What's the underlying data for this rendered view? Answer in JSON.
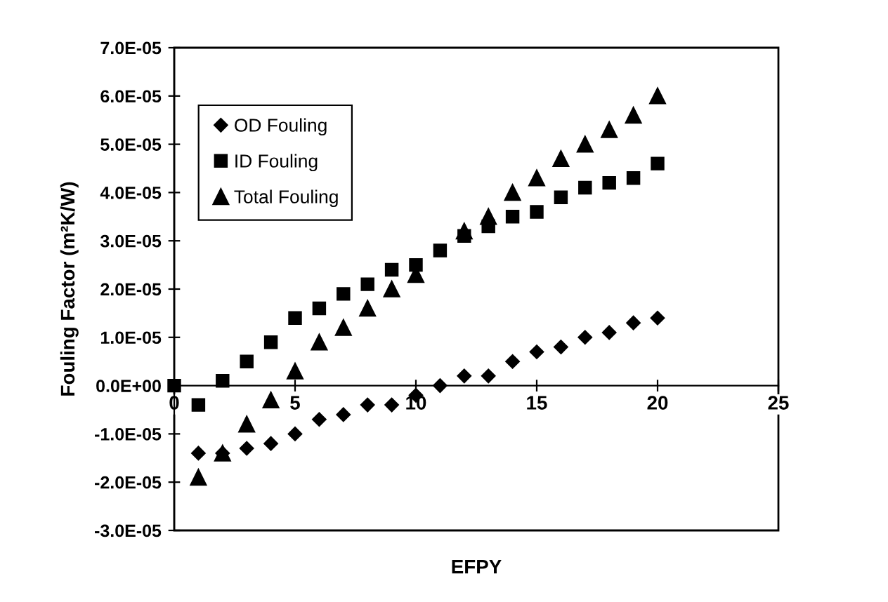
{
  "chart_data": {
    "type": "scatter",
    "xlabel": "EFPY",
    "ylabel": "Fouling Factor (m²K/W)",
    "xlim": [
      0,
      25
    ],
    "xticks": [
      0,
      5,
      10,
      15,
      20,
      25
    ],
    "ylim": [
      -3e-05,
      7e-05
    ],
    "yticks": [
      {
        "value": 7e-05,
        "label": "7.0E-05"
      },
      {
        "value": 6e-05,
        "label": "6.0E-05"
      },
      {
        "value": 5e-05,
        "label": "5.0E-05"
      },
      {
        "value": 4e-05,
        "label": "4.0E-05"
      },
      {
        "value": 3e-05,
        "label": "3.0E-05"
      },
      {
        "value": 2e-05,
        "label": "2.0E-05"
      },
      {
        "value": 1e-05,
        "label": "1.0E-05"
      },
      {
        "value": 0,
        "label": "0.0E+00"
      },
      {
        "value": -1e-05,
        "label": "-1.0E-05"
      },
      {
        "value": -2e-05,
        "label": "-2.0E-05"
      },
      {
        "value": -3e-05,
        "label": "-3.0E-05"
      }
    ],
    "grid": false,
    "legend": "top left",
    "series": [
      {
        "name": "OD Fouling",
        "color": "#000000",
        "marker": "diamond",
        "x": [
          1,
          2,
          3,
          4,
          5,
          6,
          7,
          8,
          9,
          10,
          11,
          12,
          13,
          14,
          15,
          16,
          17,
          18,
          19,
          20
        ],
        "values": [
          -1.4e-05,
          -1.4e-05,
          -1.3e-05,
          -1.2e-05,
          -1e-05,
          -7e-06,
          -6e-06,
          -4e-06,
          -4e-06,
          -2e-06,
          0,
          2e-06,
          2e-06,
          5e-06,
          7e-06,
          8e-06,
          1e-05,
          1.1e-05,
          1.3e-05,
          1.4e-05
        ]
      },
      {
        "name": "ID Fouling",
        "color": "#000000",
        "marker": "square",
        "x": [
          0,
          1,
          2,
          3,
          4,
          5,
          6,
          7,
          8,
          9,
          10,
          11,
          12,
          13,
          14,
          15,
          16,
          17,
          18,
          19,
          20
        ],
        "values": [
          0,
          -4e-06,
          1e-06,
          5e-06,
          9e-06,
          1.4e-05,
          1.6e-05,
          1.9e-05,
          2.1e-05,
          2.4e-05,
          2.5e-05,
          2.8e-05,
          3.1e-05,
          3.3e-05,
          3.5e-05,
          3.6e-05,
          3.9e-05,
          4.1e-05,
          4.2e-05,
          4.3e-05,
          4.6e-05
        ]
      },
      {
        "name": "Total Fouling",
        "color": "#000000",
        "marker": "triangle",
        "x": [
          1,
          2,
          3,
          4,
          5,
          6,
          7,
          8,
          9,
          10,
          11,
          12,
          13,
          14,
          15,
          16,
          17,
          18,
          19,
          20
        ],
        "values": [
          -1.9e-05,
          -1.4e-05,
          -8e-06,
          -3e-06,
          3e-06,
          9e-06,
          1.2e-05,
          1.6e-05,
          2e-05,
          2.3e-05,
          null,
          3.2e-05,
          3.5e-05,
          4e-05,
          4.3e-05,
          4.7e-05,
          5e-05,
          5.3e-05,
          5.6e-05,
          6e-05
        ]
      }
    ]
  }
}
